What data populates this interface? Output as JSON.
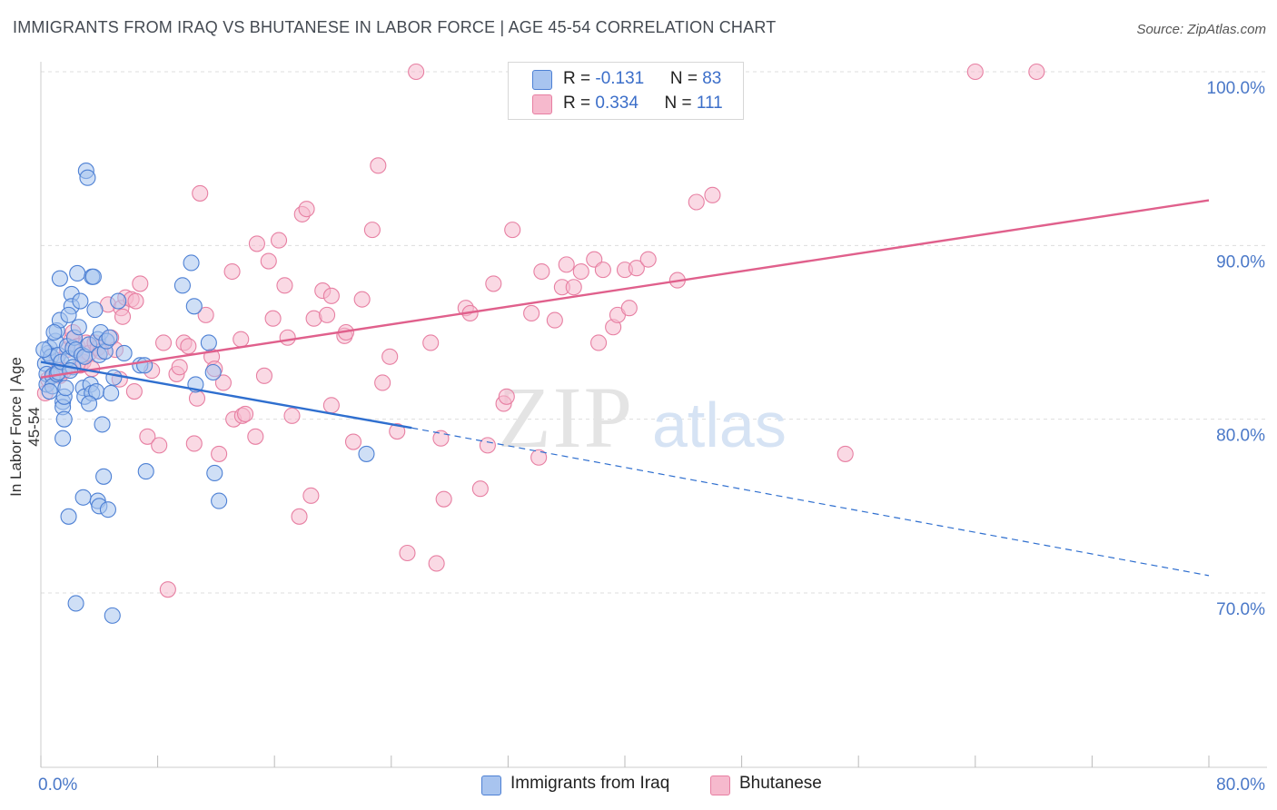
{
  "title": "IMMIGRANTS FROM IRAQ VS BHUTANESE IN LABOR FORCE | AGE 45-54 CORRELATION CHART",
  "source": "Source: ZipAtlas.com",
  "watermark": {
    "zip": "ZIP",
    "atlas": "atlas"
  },
  "legend_top": {
    "rows": [
      {
        "r_label": "R = ",
        "r_value": "-0.131",
        "n_label": "N = ",
        "n_value": "83"
      },
      {
        "r_label": "R = ",
        "r_value": "0.334",
        "n_label": "N = ",
        "n_value": "111"
      }
    ]
  },
  "legend_bottom": {
    "items": [
      "Immigrants from Iraq",
      "Bhutanese"
    ]
  },
  "colors": {
    "iraq_fill": "#a8c4ef",
    "iraq_stroke": "#4d80d4",
    "iraq_line": "#2f6fcf",
    "bhutan_fill": "#f6b9cd",
    "bhutan_stroke": "#e77fa2",
    "bhutan_line": "#e0608c",
    "tick": "#4a78c8",
    "grid": "#dddddd"
  },
  "chart_data": {
    "type": "scatter",
    "title": "IMMIGRANTS FROM IRAQ VS BHUTANESE IN LABOR FORCE | AGE 45-54 CORRELATION CHART",
    "xlabel": "",
    "ylabel": "In Labor Force | Age 45-54",
    "xlim": [
      0,
      80
    ],
    "ylim": [
      60,
      101.5
    ],
    "x_tick_labels": [
      "0.0%",
      "80.0%"
    ],
    "y_ticks": [
      70,
      80,
      90,
      100
    ],
    "y_tick_labels": [
      "70.0%",
      "80.0%",
      "90.0%",
      "100.0%"
    ],
    "series": [
      {
        "name": "Immigrants from Iraq",
        "R": -0.131,
        "N": 83,
        "trend_solid": [
          [
            0,
            83.3
          ],
          [
            25.4,
            79.5
          ]
        ],
        "trend_dashed": [
          [
            25.4,
            79.5
          ],
          [
            80,
            71.0
          ]
        ],
        "points": [
          [
            0.3,
            83.2
          ],
          [
            0.4,
            82.6
          ],
          [
            0.4,
            82.0
          ],
          [
            0.5,
            83.8
          ],
          [
            0.6,
            84.1
          ],
          [
            0.7,
            83.6
          ],
          [
            0.8,
            82.5
          ],
          [
            0.8,
            81.9
          ],
          [
            1.0,
            84.5
          ],
          [
            1.1,
            82.6
          ],
          [
            1.1,
            85.1
          ],
          [
            1.2,
            83.7
          ],
          [
            1.2,
            82.7
          ],
          [
            1.3,
            88.1
          ],
          [
            1.3,
            85.7
          ],
          [
            1.4,
            83.3
          ],
          [
            1.5,
            81.0
          ],
          [
            1.5,
            80.7
          ],
          [
            1.5,
            78.9
          ],
          [
            1.6,
            80.0
          ],
          [
            1.6,
            81.3
          ],
          [
            1.7,
            81.8
          ],
          [
            1.8,
            84.2
          ],
          [
            1.9,
            83.5
          ],
          [
            1.9,
            74.4
          ],
          [
            2.1,
            87.2
          ],
          [
            2.1,
            86.5
          ],
          [
            2.2,
            83.0
          ],
          [
            2.2,
            84.1
          ],
          [
            2.3,
            84.7
          ],
          [
            2.4,
            84.0
          ],
          [
            2.4,
            69.4
          ],
          [
            2.5,
            88.4
          ],
          [
            2.6,
            85.3
          ],
          [
            2.7,
            86.8
          ],
          [
            2.8,
            83.7
          ],
          [
            2.9,
            81.8
          ],
          [
            2.9,
            75.5
          ],
          [
            3.0,
            81.3
          ],
          [
            3.0,
            83.6
          ],
          [
            3.1,
            94.3
          ],
          [
            3.2,
            93.9
          ],
          [
            3.3,
            84.3
          ],
          [
            3.4,
            82.0
          ],
          [
            3.5,
            81.5
          ],
          [
            3.5,
            88.2
          ],
          [
            3.6,
            88.2
          ],
          [
            3.7,
            86.3
          ],
          [
            3.8,
            81.6
          ],
          [
            3.9,
            84.6
          ],
          [
            3.9,
            75.3
          ],
          [
            4.0,
            75.0
          ],
          [
            4.0,
            83.7
          ],
          [
            4.1,
            85.0
          ],
          [
            4.3,
            76.7
          ],
          [
            4.4,
            83.9
          ],
          [
            4.5,
            84.5
          ],
          [
            4.6,
            74.8
          ],
          [
            4.7,
            84.7
          ],
          [
            4.8,
            81.5
          ],
          [
            4.9,
            68.7
          ],
          [
            5.0,
            82.4
          ],
          [
            5.3,
            86.8
          ],
          [
            5.7,
            83.8
          ],
          [
            6.8,
            83.1
          ],
          [
            7.1,
            83.1
          ],
          [
            7.2,
            77.0
          ],
          [
            9.7,
            87.7
          ],
          [
            10.3,
            89.0
          ],
          [
            10.5,
            86.5
          ],
          [
            10.6,
            82.0
          ],
          [
            11.5,
            84.4
          ],
          [
            11.8,
            82.7
          ],
          [
            11.9,
            76.9
          ],
          [
            12.2,
            75.3
          ],
          [
            22.3,
            78.0
          ],
          [
            0.2,
            84.0
          ],
          [
            0.9,
            85.0
          ],
          [
            2.0,
            82.8
          ],
          [
            3.3,
            80.9
          ],
          [
            1.9,
            86.0
          ],
          [
            0.6,
            81.6
          ],
          [
            4.2,
            79.7
          ]
        ]
      },
      {
        "name": "Bhutanese",
        "R": 0.334,
        "N": 111,
        "trend": [
          [
            0,
            82.4
          ],
          [
            80,
            92.6
          ]
        ],
        "points": [
          [
            0.3,
            81.5
          ],
          [
            0.5,
            82.3
          ],
          [
            0.9,
            82.6
          ],
          [
            1.1,
            83.4
          ],
          [
            1.3,
            82.5
          ],
          [
            1.6,
            82.8
          ],
          [
            1.8,
            84.0
          ],
          [
            2.1,
            84.6
          ],
          [
            2.2,
            85.0
          ],
          [
            2.5,
            84.2
          ],
          [
            2.7,
            83.1
          ],
          [
            2.9,
            83.3
          ],
          [
            3.1,
            84.4
          ],
          [
            3.3,
            83.8
          ],
          [
            3.5,
            82.9
          ],
          [
            3.7,
            84.4
          ],
          [
            3.9,
            84.1
          ],
          [
            4.1,
            83.9
          ],
          [
            4.6,
            86.6
          ],
          [
            4.8,
            84.7
          ],
          [
            5.1,
            84.0
          ],
          [
            5.4,
            82.3
          ],
          [
            5.5,
            86.4
          ],
          [
            5.6,
            85.9
          ],
          [
            5.8,
            87.0
          ],
          [
            6.2,
            86.9
          ],
          [
            6.4,
            81.6
          ],
          [
            6.5,
            86.8
          ],
          [
            6.8,
            87.8
          ],
          [
            7.3,
            79.0
          ],
          [
            7.6,
            82.8
          ],
          [
            8.1,
            78.5
          ],
          [
            8.4,
            84.4
          ],
          [
            8.7,
            70.2
          ],
          [
            9.3,
            82.6
          ],
          [
            9.5,
            83.0
          ],
          [
            9.8,
            84.4
          ],
          [
            10.1,
            84.2
          ],
          [
            10.5,
            78.6
          ],
          [
            10.7,
            81.2
          ],
          [
            10.9,
            93.0
          ],
          [
            11.3,
            86.0
          ],
          [
            11.7,
            83.6
          ],
          [
            11.9,
            82.9
          ],
          [
            12.2,
            78.0
          ],
          [
            12.5,
            82.1
          ],
          [
            13.1,
            88.5
          ],
          [
            13.2,
            80.0
          ],
          [
            13.7,
            84.6
          ],
          [
            13.8,
            80.2
          ],
          [
            14.0,
            80.3
          ],
          [
            14.7,
            79.0
          ],
          [
            14.8,
            90.1
          ],
          [
            15.3,
            82.5
          ],
          [
            15.6,
            89.1
          ],
          [
            15.9,
            85.8
          ],
          [
            16.3,
            90.3
          ],
          [
            16.7,
            87.7
          ],
          [
            16.9,
            84.7
          ],
          [
            17.2,
            80.2
          ],
          [
            17.7,
            74.4
          ],
          [
            17.9,
            91.8
          ],
          [
            18.2,
            92.1
          ],
          [
            18.5,
            75.6
          ],
          [
            18.7,
            85.8
          ],
          [
            19.3,
            87.4
          ],
          [
            19.6,
            86.0
          ],
          [
            19.9,
            87.1
          ],
          [
            19.9,
            80.8
          ],
          [
            20.8,
            84.8
          ],
          [
            20.9,
            85.0
          ],
          [
            21.4,
            78.7
          ],
          [
            22.0,
            86.9
          ],
          [
            22.7,
            90.9
          ],
          [
            23.1,
            94.6
          ],
          [
            23.4,
            82.1
          ],
          [
            23.9,
            83.6
          ],
          [
            24.4,
            79.3
          ],
          [
            25.1,
            72.3
          ],
          [
            25.7,
            100.0
          ],
          [
            26.7,
            84.4
          ],
          [
            27.1,
            71.7
          ],
          [
            27.4,
            78.9
          ],
          [
            27.6,
            75.4
          ],
          [
            29.1,
            86.4
          ],
          [
            29.4,
            86.1
          ],
          [
            30.1,
            76.0
          ],
          [
            30.6,
            78.5
          ],
          [
            31.0,
            87.8
          ],
          [
            31.7,
            80.9
          ],
          [
            31.9,
            81.3
          ],
          [
            32.3,
            90.9
          ],
          [
            33.6,
            86.1
          ],
          [
            34.1,
            77.8
          ],
          [
            34.3,
            88.5
          ],
          [
            35.2,
            85.7
          ],
          [
            35.7,
            87.6
          ],
          [
            36.0,
            88.9
          ],
          [
            36.5,
            87.6
          ],
          [
            37.0,
            88.5
          ],
          [
            37.9,
            89.2
          ],
          [
            38.2,
            84.4
          ],
          [
            38.5,
            88.6
          ],
          [
            39.2,
            85.3
          ],
          [
            39.5,
            86.0
          ],
          [
            40.0,
            88.6
          ],
          [
            40.3,
            86.4
          ],
          [
            40.8,
            88.7
          ],
          [
            41.6,
            89.2
          ],
          [
            43.6,
            88.0
          ],
          [
            44.9,
            92.5
          ],
          [
            46.0,
            92.9
          ],
          [
            55.1,
            78.0
          ],
          [
            64.0,
            100.0
          ],
          [
            68.2,
            100.0
          ]
        ]
      }
    ]
  }
}
